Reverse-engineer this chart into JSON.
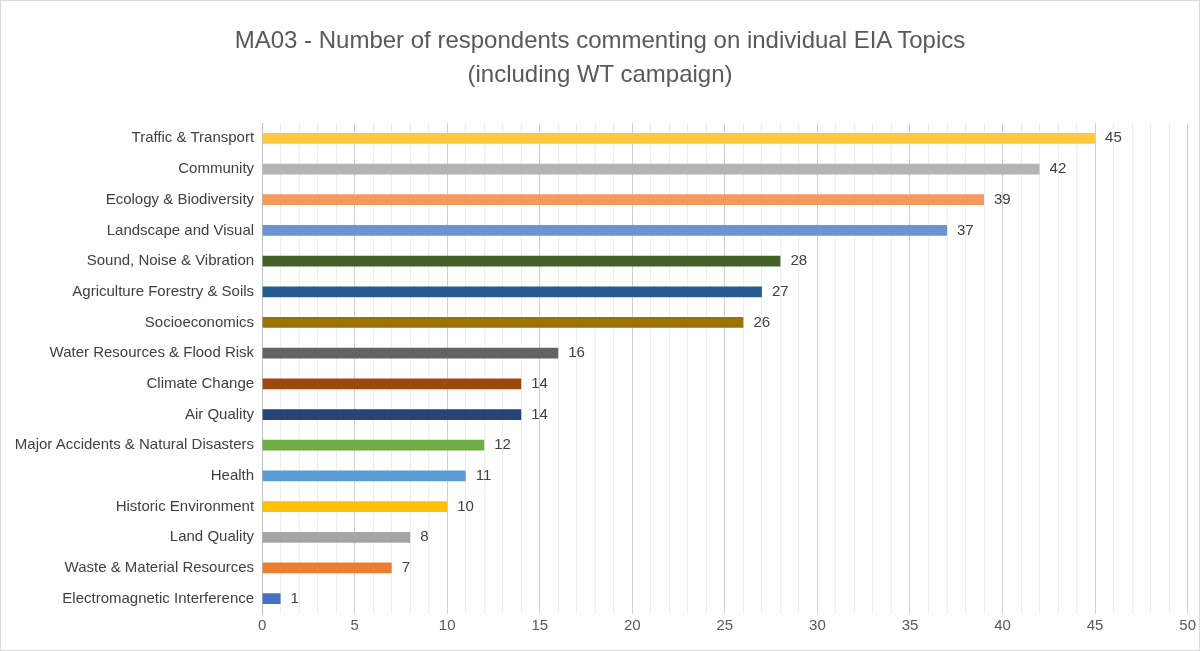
{
  "chart_data": {
    "type": "bar",
    "orientation": "horizontal",
    "title": "MA03 - Number of respondents commenting on individual EIA Topics\n(including WT campaign)",
    "categories": [
      "Traffic & Transport",
      "Community",
      "Ecology & Biodiversity",
      "Landscape and Visual",
      "Sound, Noise & Vibration",
      "Agriculture Forestry & Soils",
      "Socioeconomics",
      "Water Resources & Flood Risk",
      "Climate Change",
      "Air Quality",
      "Major Accidents & Natural Disasters",
      "Health",
      "Historic Environment",
      "Land Quality",
      "Waste & Material Resources",
      "Electromagnetic Interference"
    ],
    "values": [
      45,
      42,
      39,
      37,
      28,
      27,
      26,
      16,
      14,
      14,
      12,
      11,
      10,
      8,
      7,
      1
    ],
    "colors": [
      "#ffc83d",
      "#b4b4b4",
      "#f4995b",
      "#6d93d4",
      "#426028",
      "#285b8e",
      "#9a7300",
      "#636363",
      "#9e480e",
      "#254478",
      "#70ad47",
      "#5b9bd5",
      "#ffc000",
      "#a5a5a5",
      "#ed7d31",
      "#4472c4"
    ],
    "xlim": [
      0,
      50
    ],
    "xticks": [
      0,
      {
        "value": 1,
        "label": null
      },
      {
        "value": 2,
        "label": null
      },
      {
        "value": 3,
        "label": null
      },
      {
        "value": 4,
        "label": null
      },
      5,
      {
        "value": 6,
        "label": null
      },
      {
        "value": 7,
        "label": null
      },
      {
        "value": 8,
        "label": null
      },
      {
        "value": 9,
        "label": null
      },
      10,
      {
        "value": 11,
        "label": null
      },
      {
        "value": 12,
        "label": null
      },
      {
        "value": 13,
        "label": null
      },
      {
        "value": 14,
        "label": null
      },
      15,
      {
        "value": 16,
        "label": null
      },
      {
        "value": 17,
        "label": null
      },
      {
        "value": 18,
        "label": null
      },
      {
        "value": 19,
        "label": null
      },
      20,
      {
        "value": 21,
        "label": null
      },
      {
        "value": 22,
        "label": null
      },
      {
        "value": 23,
        "label": null
      },
      {
        "value": 24,
        "label": null
      },
      25,
      {
        "value": 26,
        "label": null
      },
      {
        "value": 27,
        "label": null
      },
      {
        "value": 28,
        "label": null
      },
      {
        "value": 29,
        "label": null
      },
      30,
      {
        "value": 31,
        "label": null
      },
      {
        "value": 32,
        "label": null
      },
      {
        "value": 33,
        "label": null
      },
      {
        "value": 34,
        "label": null
      },
      35,
      {
        "value": 36,
        "label": null
      },
      {
        "value": 37,
        "label": null
      },
      {
        "value": 38,
        "label": null
      },
      {
        "value": 39,
        "label": null
      },
      40,
      {
        "value": 41,
        "label": null
      },
      {
        "value": 42,
        "label": null
      },
      {
        "value": 43,
        "label": null
      },
      {
        "value": 44,
        "label": null
      },
      45,
      {
        "value": 46,
        "label": null
      },
      {
        "value": 47,
        "label": null
      },
      {
        "value": 48,
        "label": null
      },
      {
        "value": 49,
        "label": null
      },
      50
    ],
    "grid": "x",
    "data_labels": true
  }
}
